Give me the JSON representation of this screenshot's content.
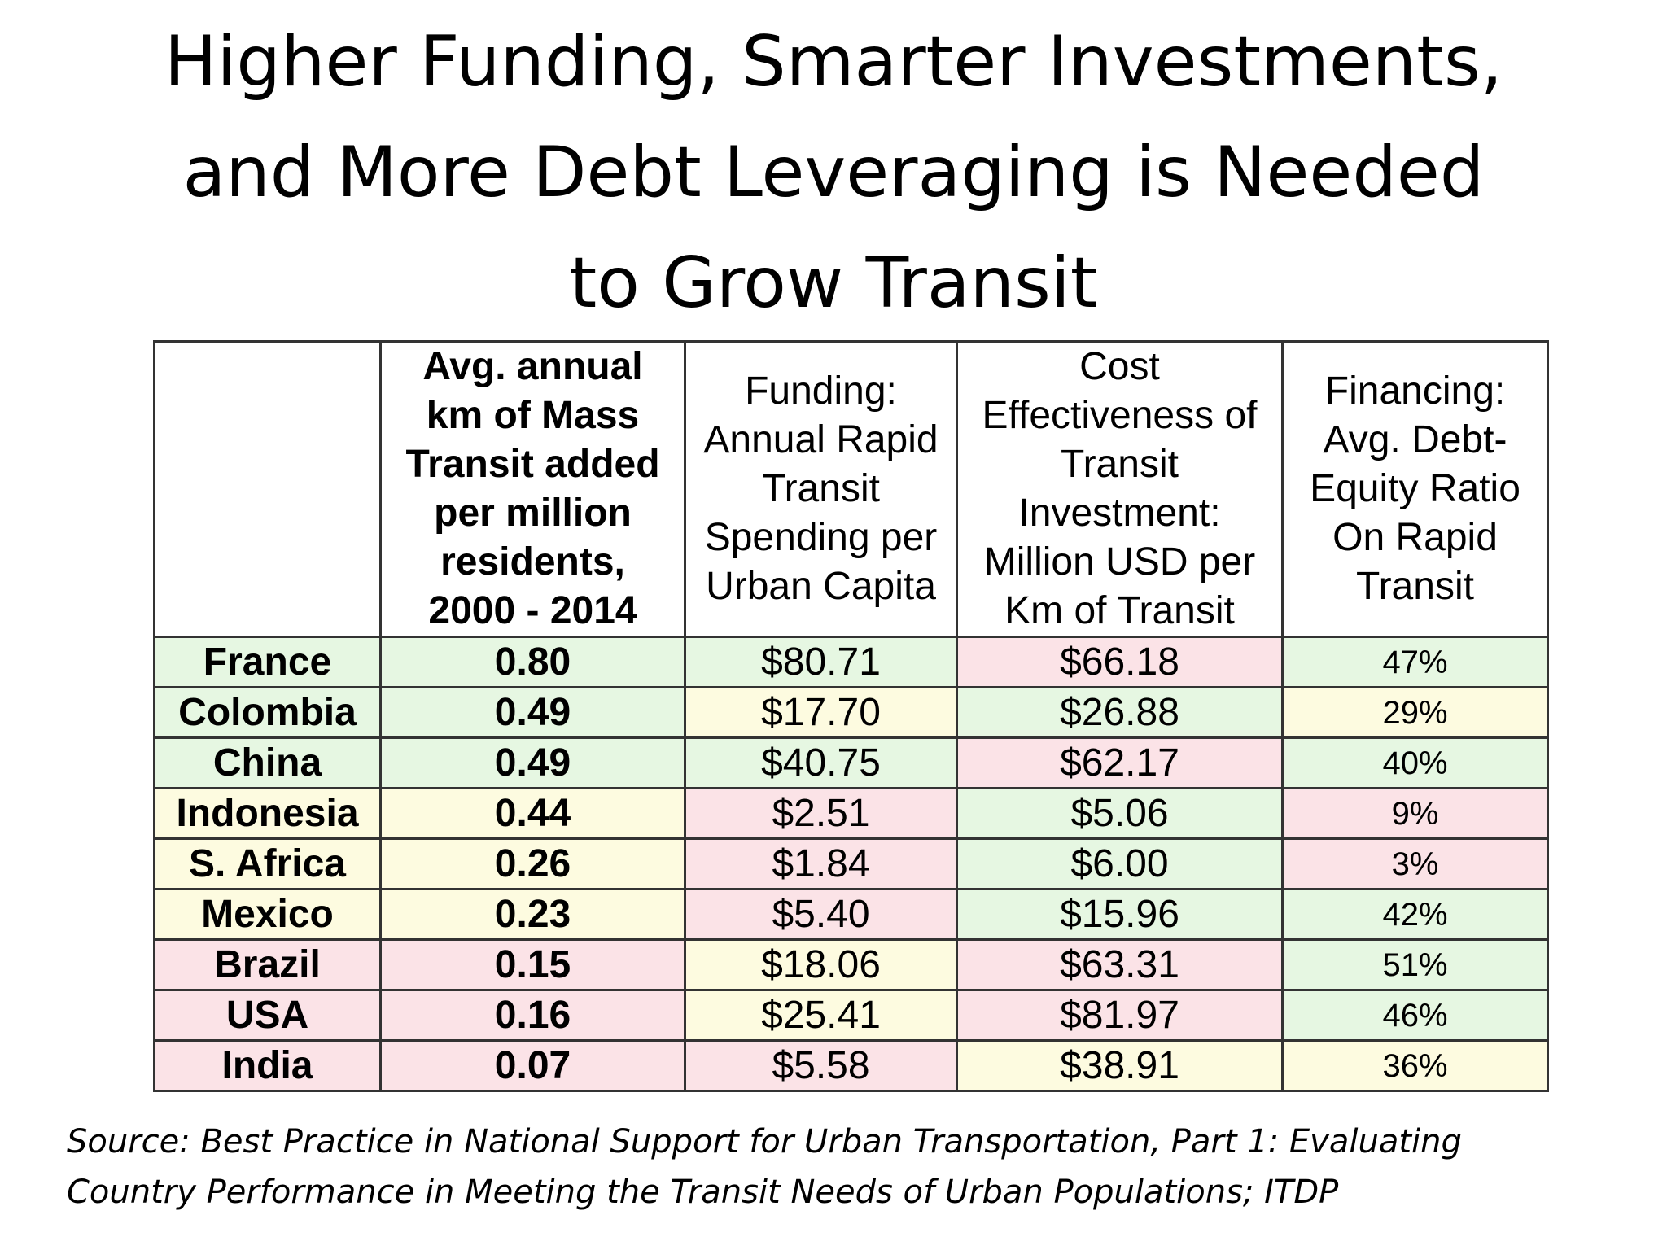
{
  "title_lines": [
    "Higher Funding, Smarter Investments,",
    "and More Debt Leveraging is Needed",
    "to Grow Transit"
  ],
  "table": {
    "headers": [
      {
        "lines": [
          ""
        ]
      },
      {
        "lines": [
          "Avg. annual",
          "km of Mass",
          "Transit added",
          "per million",
          "residents,",
          "2000 - 2014"
        ]
      },
      {
        "lines": [
          "Funding:",
          "Annual Rapid",
          "Transit",
          "Spending per",
          "Urban Capita"
        ]
      },
      {
        "lines": [
          "Cost",
          "Effectiveness of",
          "Transit",
          "Investment:",
          "Million USD per",
          "Km of Transit"
        ]
      },
      {
        "lines": [
          "Financing:",
          "Avg. Debt-",
          "Equity Ratio",
          "On Rapid",
          "Transit"
        ]
      }
    ],
    "rows": [
      {
        "cells": [
          "France",
          "0.80",
          "$80.71",
          "$66.18",
          "47%"
        ],
        "colors": [
          "g",
          "g",
          "g",
          "r",
          "g"
        ]
      },
      {
        "cells": [
          "Colombia",
          "0.49",
          "$17.70",
          "$26.88",
          "29%"
        ],
        "colors": [
          "g",
          "g",
          "y",
          "g",
          "y"
        ]
      },
      {
        "cells": [
          "China",
          "0.49",
          "$40.75",
          "$62.17",
          "40%"
        ],
        "colors": [
          "g",
          "g",
          "g",
          "r",
          "g"
        ]
      },
      {
        "cells": [
          "Indonesia",
          "0.44",
          "$2.51",
          "$5.06",
          "9%"
        ],
        "colors": [
          "y",
          "y",
          "r",
          "g",
          "r"
        ]
      },
      {
        "cells": [
          "S. Africa",
          "0.26",
          "$1.84",
          "$6.00",
          "3%"
        ],
        "colors": [
          "y",
          "y",
          "r",
          "g",
          "r"
        ]
      },
      {
        "cells": [
          "Mexico",
          "0.23",
          "$5.40",
          "$15.96",
          "42%"
        ],
        "colors": [
          "y",
          "y",
          "r",
          "g",
          "g"
        ]
      },
      {
        "cells": [
          "Brazil",
          "0.15",
          "$18.06",
          "$63.31",
          "51%"
        ],
        "colors": [
          "r",
          "r",
          "y",
          "r",
          "g"
        ]
      },
      {
        "cells": [
          "USA",
          "0.16",
          "$25.41",
          "$81.97",
          "46%"
        ],
        "colors": [
          "r",
          "r",
          "y",
          "r",
          "g"
        ]
      },
      {
        "cells": [
          "India",
          "0.07",
          "$5.58",
          "$38.91",
          "36%"
        ],
        "colors": [
          "r",
          "r",
          "r",
          "y",
          "y"
        ]
      }
    ]
  },
  "source_lines": [
    "Source:  Best Practice in National Support for Urban Transportation, Part 1: Evaluating",
    "Country Performance in Meeting the Transit Needs of Urban Populations; ITDP"
  ],
  "colors": {
    "green": "#e6f7e2",
    "yellow": "#fdfbe0",
    "red": "#fbe3e7",
    "border": "#333333"
  }
}
